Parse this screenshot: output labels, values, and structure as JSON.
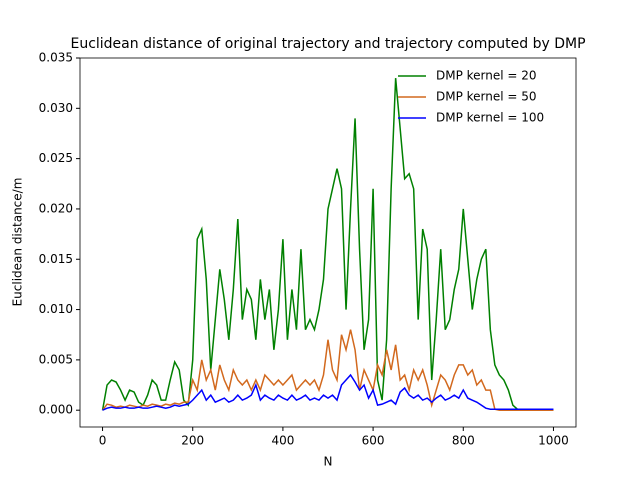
{
  "chart_data": {
    "type": "line",
    "title": "Euclidean distance of original trajectory and trajectory computed by DMP",
    "xlabel": "N",
    "ylabel": "Euclidean distance/m",
    "x": [
      0,
      10,
      20,
      30,
      40,
      50,
      60,
      70,
      80,
      90,
      100,
      110,
      120,
      130,
      140,
      150,
      160,
      170,
      180,
      190,
      200,
      210,
      220,
      230,
      240,
      250,
      260,
      270,
      280,
      290,
      300,
      310,
      320,
      330,
      340,
      350,
      360,
      370,
      380,
      390,
      400,
      410,
      420,
      430,
      440,
      450,
      460,
      470,
      480,
      490,
      500,
      510,
      520,
      530,
      540,
      550,
      560,
      570,
      580,
      590,
      600,
      610,
      620,
      630,
      640,
      650,
      660,
      670,
      680,
      690,
      700,
      710,
      720,
      730,
      740,
      750,
      760,
      770,
      780,
      790,
      800,
      810,
      820,
      830,
      840,
      850,
      860,
      870,
      880,
      890,
      900,
      910,
      920,
      930,
      940,
      950,
      960,
      970,
      980,
      990,
      1000
    ],
    "series": [
      {
        "name": "DMP kernel = 20",
        "color": "#008000",
        "values": [
          0,
          0.0025,
          0.003,
          0.0028,
          0.002,
          0.001,
          0.002,
          0.0018,
          0.0008,
          0.0005,
          0.0015,
          0.003,
          0.0025,
          0.001,
          0.001,
          0.003,
          0.0048,
          0.004,
          0.001,
          0.0005,
          0.005,
          0.017,
          0.018,
          0.013,
          0.004,
          0.009,
          0.014,
          0.011,
          0.007,
          0.012,
          0.019,
          0.009,
          0.012,
          0.011,
          0.007,
          0.013,
          0.009,
          0.012,
          0.006,
          0.01,
          0.017,
          0.007,
          0.012,
          0.008,
          0.016,
          0.008,
          0.009,
          0.008,
          0.01,
          0.013,
          0.02,
          0.022,
          0.024,
          0.022,
          0.01,
          0.02,
          0.029,
          0.016,
          0.006,
          0.009,
          0.022,
          0.003,
          0.001,
          0.007,
          0.022,
          0.033,
          0.028,
          0.023,
          0.0235,
          0.022,
          0.009,
          0.018,
          0.016,
          0.003,
          0.009,
          0.016,
          0.008,
          0.009,
          0.012,
          0.014,
          0.02,
          0.015,
          0.01,
          0.013,
          0.015,
          0.016,
          0.008,
          0.0045,
          0.0035,
          0.003,
          0.002,
          0.0005,
          0.0001,
          0,
          0,
          0,
          0,
          0,
          0,
          0,
          0
        ]
      },
      {
        "name": "DMP kernel = 50",
        "color": "#d2691e",
        "values": [
          0,
          0.0006,
          0.0005,
          0.0003,
          0.0004,
          0.0003,
          0.0005,
          0.0004,
          0.0003,
          0.0005,
          0.0004,
          0.0006,
          0.0005,
          0.0004,
          0.0006,
          0.0005,
          0.0007,
          0.0006,
          0.0008,
          0.0008,
          0.003,
          0.002,
          0.005,
          0.003,
          0.004,
          0.002,
          0.0045,
          0.003,
          0.002,
          0.004,
          0.003,
          0.0025,
          0.003,
          0.002,
          0.003,
          0.002,
          0.0035,
          0.003,
          0.0025,
          0.003,
          0.0025,
          0.003,
          0.0035,
          0.002,
          0.0025,
          0.003,
          0.0025,
          0.003,
          0.002,
          0.0035,
          0.007,
          0.004,
          0.003,
          0.0075,
          0.006,
          0.008,
          0.006,
          0.002,
          0.004,
          0.003,
          0.002,
          0.0045,
          0.0035,
          0.006,
          0.004,
          0.0065,
          0.003,
          0.0035,
          0.002,
          0.004,
          0.003,
          0.004,
          0.0025,
          0.0005,
          0.002,
          0.0035,
          0.003,
          0.002,
          0.0035,
          0.0045,
          0.0045,
          0.0035,
          0.004,
          0.0025,
          0.003,
          0.002,
          0.002,
          0.0001,
          0,
          0,
          0,
          0,
          0,
          0,
          0,
          0,
          0,
          0,
          0,
          0,
          0
        ]
      },
      {
        "name": "DMP kernel = 100",
        "color": "#0000ff",
        "values": [
          0,
          0.0002,
          0.0003,
          0.0002,
          0.0002,
          0.0003,
          0.0002,
          0.0002,
          0.0003,
          0.0002,
          0.0002,
          0.0003,
          0.0004,
          0.0003,
          0.0002,
          0.0003,
          0.0005,
          0.0004,
          0.0005,
          0.0006,
          0.001,
          0.0015,
          0.002,
          0.001,
          0.0015,
          0.0008,
          0.001,
          0.0012,
          0.0008,
          0.001,
          0.0015,
          0.001,
          0.0012,
          0.0015,
          0.0025,
          0.001,
          0.0015,
          0.0012,
          0.001,
          0.0015,
          0.0012,
          0.001,
          0.0015,
          0.001,
          0.0012,
          0.0015,
          0.001,
          0.0012,
          0.001,
          0.0015,
          0.0012,
          0.0015,
          0.001,
          0.0025,
          0.003,
          0.0035,
          0.0028,
          0.002,
          0.0025,
          0.0012,
          0.002,
          0.0005,
          0.0006,
          0.0008,
          0.001,
          0.0006,
          0.0018,
          0.0022,
          0.0015,
          0.0012,
          0.0015,
          0.001,
          0.0012,
          0.0008,
          0.0012,
          0.0015,
          0.001,
          0.0012,
          0.0015,
          0.0012,
          0.002,
          0.0012,
          0.001,
          0.0008,
          0.0005,
          0.0002,
          0.0001,
          0.0001,
          0.0001,
          0.0001,
          0.0001,
          0.0001,
          0.0001,
          0.0001,
          0.0001,
          0.0001,
          0.0001,
          0.0001,
          0.0001,
          0.0001,
          0.0001
        ]
      }
    ],
    "xlim": [
      -50,
      1050
    ],
    "ylim": [
      -0.00167,
      0.035
    ],
    "xticks": [
      0,
      200,
      400,
      600,
      800,
      1000
    ],
    "yticks": [
      {
        "value": 0,
        "label": "0.000"
      },
      {
        "value": 0.005,
        "label": "0.005"
      },
      {
        "value": 0.01,
        "label": "0.010"
      },
      {
        "value": 0.015,
        "label": "0.015"
      },
      {
        "value": 0.02,
        "label": "0.020"
      },
      {
        "value": 0.025,
        "label": "0.025"
      },
      {
        "value": 0.03,
        "label": "0.030"
      },
      {
        "value": 0.035,
        "label": "0.035"
      }
    ],
    "grid": false,
    "legend": "upper right"
  }
}
